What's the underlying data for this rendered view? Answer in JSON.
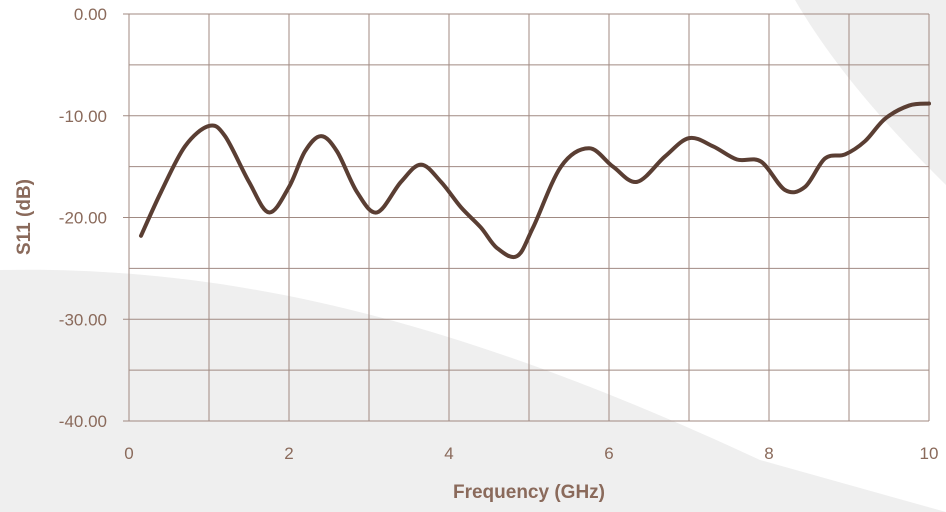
{
  "chart_data": {
    "type": "line",
    "title": "",
    "xlabel": "Frequency (GHz)",
    "ylabel": "S11 (dB)",
    "xlim": [
      0,
      10
    ],
    "ylim": [
      -40,
      0
    ],
    "x_ticks": [
      0,
      2,
      4,
      6,
      8,
      10
    ],
    "x_tick_labels": [
      "0",
      "2",
      "4",
      "6",
      "8",
      "10"
    ],
    "y_ticks": [
      0,
      -10,
      -20,
      -30,
      -40
    ],
    "y_tick_labels": [
      "0.00",
      "-10.00",
      "-20.00",
      "-30.00",
      "-40.00"
    ],
    "x_grid_step": 1,
    "y_grid_step": 5,
    "grid": true,
    "legend": "none",
    "colors": {
      "line": "#5a3e33",
      "grid": "#a08a82",
      "axis_text": "#8a6a5b",
      "background_shape": "#efefef"
    },
    "series": [
      {
        "x": [
          0.15,
          0.4,
          0.7,
          1.0,
          1.2,
          1.5,
          1.75,
          2.0,
          2.2,
          2.4,
          2.6,
          2.85,
          3.1,
          3.4,
          3.65,
          3.9,
          4.15,
          4.4,
          4.6,
          4.85,
          5.05,
          5.4,
          5.75,
          6.05,
          6.35,
          6.7,
          7.0,
          7.3,
          7.6,
          7.9,
          8.2,
          8.45,
          8.7,
          8.95,
          9.2,
          9.45,
          9.75,
          10.0
        ],
        "y": [
          -21.8,
          -17.5,
          -13.0,
          -11.0,
          -12.0,
          -16.5,
          -19.5,
          -17.0,
          -13.5,
          -12.0,
          -13.5,
          -17.5,
          -19.5,
          -16.5,
          -14.8,
          -16.5,
          -19.0,
          -21.0,
          -23.0,
          -23.8,
          -21.0,
          -15.0,
          -13.2,
          -15.0,
          -16.5,
          -14.0,
          -12.2,
          -13.0,
          -14.3,
          -14.5,
          -17.3,
          -17.0,
          -14.2,
          -13.8,
          -12.5,
          -10.3,
          -9.0,
          -8.8
        ]
      }
    ]
  }
}
